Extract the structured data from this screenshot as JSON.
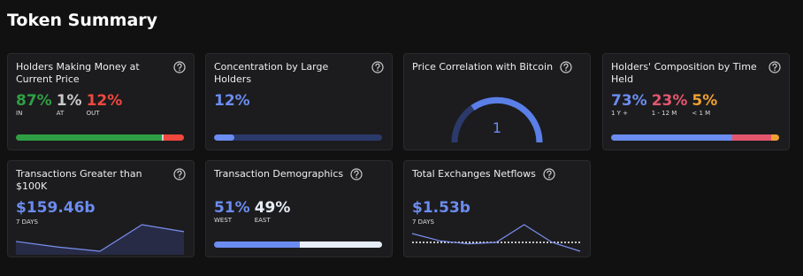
{
  "header": {
    "title": "Token Summary"
  },
  "cards": [
    {
      "title": "Holders Making Money at Current Price",
      "kind": "split",
      "metrics": [
        {
          "value": 87,
          "label": "87%",
          "caption": "IN",
          "color": "#2ea043"
        },
        {
          "value": 1,
          "label": "1%",
          "caption": "AT",
          "color": "#c9c9c9"
        },
        {
          "value": 12,
          "label": "12%",
          "caption": "OUT",
          "color": "#f0483e"
        }
      ]
    },
    {
      "title": "Concentration by Large Holders",
      "kind": "share",
      "track": "#2b3a6b",
      "metrics": [
        {
          "value": 12,
          "label": "12%",
          "color": "#6b8cf0"
        }
      ]
    },
    {
      "title": "Price Correlation with Bitcoin",
      "kind": "gauge",
      "value_label": "1"
    },
    {
      "title": "Holders' Composition by Time Held",
      "kind": "split",
      "metrics": [
        {
          "value": 73,
          "label": "73%",
          "caption": "1 Y +",
          "color": "#6b8cf0"
        },
        {
          "value": 23,
          "label": "23%",
          "caption": "1 - 12 M",
          "color": "#e4566e"
        },
        {
          "value": 5,
          "label": "5%",
          "caption": "< 1 M",
          "color": "#f0a030"
        }
      ]
    },
    {
      "title": "Transactions Greater than $100K",
      "kind": "trend",
      "value_label": "$159.46b",
      "period": "7 DAYS",
      "trend": [
        9,
        5,
        2,
        21,
        16
      ]
    },
    {
      "title": "Transaction Demographics",
      "kind": "split",
      "metrics": [
        {
          "value": 51,
          "label": "51%",
          "caption": "WEST",
          "color": "#6b8cf0"
        },
        {
          "value": 49,
          "label": "49%",
          "caption": "EAST",
          "color": "#e6edf7"
        }
      ]
    },
    {
      "title": "Total Exchanges Netflows",
      "kind": "trend",
      "value_label": "$1.53b",
      "period": "7 DAYS",
      "trend": [
        6,
        1,
        -1,
        0,
        12,
        0,
        -6
      ],
      "baseline": true
    }
  ]
}
